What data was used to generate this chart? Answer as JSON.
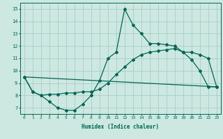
{
  "title": "",
  "xlabel": "Humidex (Indice chaleur)",
  "bg_color": "#cce8e0",
  "line_color": "#006655",
  "grid_color": "#aacccc",
  "xlim": [
    -0.5,
    23.5
  ],
  "ylim": [
    6.5,
    15.5
  ],
  "xticks": [
    0,
    1,
    2,
    3,
    4,
    5,
    6,
    7,
    8,
    9,
    10,
    11,
    12,
    13,
    14,
    15,
    16,
    17,
    18,
    19,
    20,
    21,
    22,
    23
  ],
  "yticks": [
    7,
    8,
    9,
    10,
    11,
    12,
    13,
    14,
    15
  ],
  "line1_x": [
    0,
    1,
    2,
    3,
    4,
    5,
    6,
    7,
    8,
    9,
    10,
    11,
    12,
    13,
    14,
    15,
    16,
    17,
    18,
    19,
    20,
    21,
    22,
    23
  ],
  "line1_y": [
    9.5,
    8.3,
    8.0,
    7.5,
    7.0,
    6.8,
    6.8,
    7.3,
    8.0,
    9.2,
    11.0,
    11.5,
    15.0,
    13.7,
    13.0,
    12.2,
    12.2,
    12.1,
    12.0,
    11.5,
    10.9,
    10.0,
    8.7,
    8.7
  ],
  "line2_x": [
    0,
    1,
    2,
    3,
    4,
    5,
    6,
    7,
    8,
    9,
    10,
    11,
    12,
    13,
    14,
    15,
    16,
    17,
    18,
    19,
    20,
    21,
    22,
    23
  ],
  "line2_y": [
    9.5,
    8.3,
    8.0,
    8.1,
    8.1,
    8.2,
    8.2,
    8.3,
    8.3,
    8.5,
    9.0,
    9.7,
    10.3,
    10.9,
    11.3,
    11.5,
    11.6,
    11.7,
    11.8,
    11.5,
    11.5,
    11.3,
    11.0,
    8.7
  ],
  "line3_x": [
    0,
    23
  ],
  "line3_y": [
    9.5,
    8.7
  ],
  "marker": "D",
  "markersize": 2.0,
  "linewidth": 0.9
}
